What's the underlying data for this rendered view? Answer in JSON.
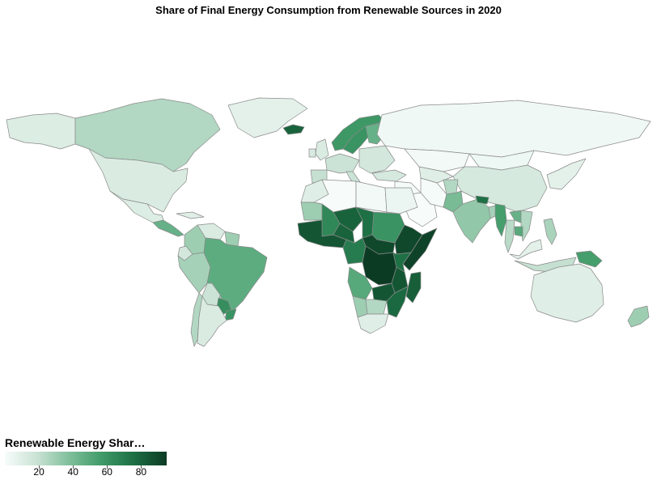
{
  "title": "Share of Final Energy Consumption from Renewable Sources in 2020",
  "legend": {
    "title": "Renewable Energy Shar…",
    "ticks": [
      20,
      40,
      60,
      80
    ],
    "range": [
      0,
      95
    ],
    "color_low": "#f7fcfb",
    "color_high": "#0c3b24"
  },
  "chart_data": {
    "type": "choropleth",
    "metric_unit": "percent",
    "scale": [
      0,
      95
    ],
    "regions": [
      {
        "name": "Canada",
        "value": 25
      },
      {
        "name": "Greenland",
        "value": 8
      },
      {
        "name": "Alaska",
        "value": 11
      },
      {
        "name": "United States",
        "value": 12
      },
      {
        "name": "Mexico",
        "value": 11
      },
      {
        "name": "Central America",
        "value": 45
      },
      {
        "name": "Caribbean",
        "value": 10
      },
      {
        "name": "Colombia",
        "value": 30
      },
      {
        "name": "Venezuela",
        "value": 12
      },
      {
        "name": "Guianas",
        "value": 30
      },
      {
        "name": "Ecuador",
        "value": 15
      },
      {
        "name": "Peru",
        "value": 28
      },
      {
        "name": "Bolivia",
        "value": 18
      },
      {
        "name": "Brazil",
        "value": 48
      },
      {
        "name": "Paraguay",
        "value": 62
      },
      {
        "name": "Uruguay",
        "value": 60
      },
      {
        "name": "Argentina",
        "value": 12
      },
      {
        "name": "Chile",
        "value": 25
      },
      {
        "name": "Iceland",
        "value": 80
      },
      {
        "name": "United Kingdom",
        "value": 12
      },
      {
        "name": "Ireland",
        "value": 13
      },
      {
        "name": "Norway",
        "value": 58
      },
      {
        "name": "Sweden",
        "value": 60
      },
      {
        "name": "Finland",
        "value": 45
      },
      {
        "name": "Western Europe",
        "value": 18
      },
      {
        "name": "Iberia",
        "value": 20
      },
      {
        "name": "Italy",
        "value": 18
      },
      {
        "name": "Eastern Europe",
        "value": 15
      },
      {
        "name": "Turkey",
        "value": 14
      },
      {
        "name": "Russia",
        "value": 3
      },
      {
        "name": "Kazakhstan",
        "value": 2
      },
      {
        "name": "Central Asia",
        "value": 10
      },
      {
        "name": "Mongolia",
        "value": 4
      },
      {
        "name": "China",
        "value": 14
      },
      {
        "name": "Korea & Japan",
        "value": 8
      },
      {
        "name": "Middle East",
        "value": 1
      },
      {
        "name": "Saudi Arabia",
        "value": 0
      },
      {
        "name": "Iran",
        "value": 1
      },
      {
        "name": "Afghanistan",
        "value": 25
      },
      {
        "name": "Pakistan",
        "value": 40
      },
      {
        "name": "India",
        "value": 33
      },
      {
        "name": "Nepal",
        "value": 75
      },
      {
        "name": "Bangladesh",
        "value": 28
      },
      {
        "name": "Myanmar",
        "value": 55
      },
      {
        "name": "Thailand",
        "value": 23
      },
      {
        "name": "Laos",
        "value": 45
      },
      {
        "name": "Vietnam",
        "value": 25
      },
      {
        "name": "Cambodia",
        "value": 50
      },
      {
        "name": "Malaysia",
        "value": 8
      },
      {
        "name": "Indonesia",
        "value": 20
      },
      {
        "name": "Philippines",
        "value": 27
      },
      {
        "name": "Papua New Guinea",
        "value": 55
      },
      {
        "name": "Australia",
        "value": 10
      },
      {
        "name": "New Zealand",
        "value": 30
      },
      {
        "name": "Morocco",
        "value": 10
      },
      {
        "name": "Algeria",
        "value": 0
      },
      {
        "name": "Libya",
        "value": 2
      },
      {
        "name": "Egypt",
        "value": 5
      },
      {
        "name": "Mauritania",
        "value": 30
      },
      {
        "name": "Mali",
        "value": 65
      },
      {
        "name": "Niger",
        "value": 80
      },
      {
        "name": "Chad",
        "value": 75
      },
      {
        "name": "Sudan",
        "value": 60
      },
      {
        "name": "West Africa Coast",
        "value": 85
      },
      {
        "name": "Nigeria",
        "value": 80
      },
      {
        "name": "Ethiopia",
        "value": 90
      },
      {
        "name": "Somalia",
        "value": 92
      },
      {
        "name": "Central African Republic",
        "value": 90
      },
      {
        "name": "DR Congo",
        "value": 95
      },
      {
        "name": "Cameroon & Gabon",
        "value": 70
      },
      {
        "name": "Kenya & Uganda",
        "value": 75
      },
      {
        "name": "Tanzania",
        "value": 85
      },
      {
        "name": "Angola",
        "value": 50
      },
      {
        "name": "Zambia",
        "value": 85
      },
      {
        "name": "Mozambique",
        "value": 78
      },
      {
        "name": "Namibia",
        "value": 30
      },
      {
        "name": "Botswana",
        "value": 25
      },
      {
        "name": "South Africa",
        "value": 10
      },
      {
        "name": "Madagascar",
        "value": 82
      }
    ]
  }
}
